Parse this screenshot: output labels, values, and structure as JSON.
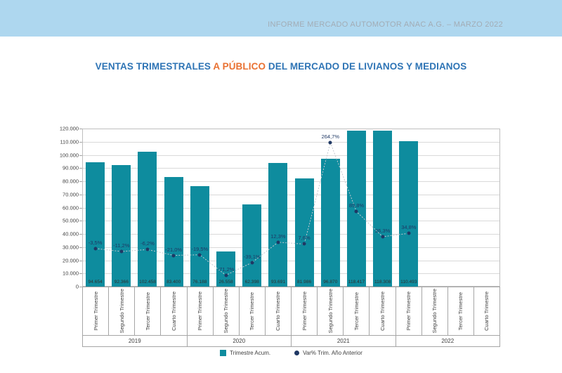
{
  "header": {
    "banner_text": "INFORME MERCADO AUTOMOTOR ANAC A.G. – MARZO 2022"
  },
  "title": {
    "part1": "VENTAS TRIMESTRALES",
    "part2": "A PÚBLICO",
    "part3": "DEL MERCADO DE LIVIANOS Y MEDIANOS"
  },
  "colors": {
    "bar": "#0E8C9E",
    "line_marker": "#1F3864",
    "banner": "#AED7EF",
    "title_blue": "#2E74B5",
    "title_orange": "#E97132",
    "gridline": "#D9D9D9"
  },
  "chart_data": {
    "type": "bar",
    "title": "VENTAS TRIMESTRALES A PÚBLICO DEL MERCADO DE LIVIANOS Y MEDIANOS",
    "years": [
      "2019",
      "2020",
      "2021",
      "2022"
    ],
    "quarter_labels": [
      "Primer Trimestre",
      "Segundo Trimestre",
      "Tercer Trimestre",
      "Cuarto Trimestre"
    ],
    "categories": [
      "Primer Trimestre",
      "Segundo Trimestre",
      "Tercer Trimestre",
      "Cuarto Trimestre",
      "Primer Trimestre",
      "Segundo Trimestre",
      "Tercer Trimestre",
      "Cuarto Trimestre",
      "Primer Trimestre",
      "Segundo Trimestre",
      "Tercer Trimestre",
      "Cuarto Trimestre",
      "Primer Trimestre",
      "Segundo Trimestre",
      "Tercer Trimestre",
      "Cuarto Trimestre"
    ],
    "series": [
      {
        "name": "Trimestre Acum.",
        "type": "bar",
        "values": [
          94654,
          92366,
          102458,
          83400,
          76188,
          26558,
          62398,
          93691,
          81986,
          96870,
          118417,
          118308,
          110493,
          null,
          null,
          null
        ],
        "value_labels": [
          "94.654",
          "92.366",
          "102.458",
          "83.400",
          "76.188",
          "26.558",
          "62.398",
          "93.691",
          "81.986",
          "96.870",
          "118.417",
          "118.308",
          "110.493",
          "",
          "",
          ""
        ]
      },
      {
        "name": "Var% Trim. Año Anterior",
        "type": "line",
        "values": [
          -3.5,
          -11.2,
          -6.2,
          -21.0,
          -19.5,
          -71.2,
          -39.1,
          12.3,
          7.6,
          264.7,
          89.8,
          26.3,
          34.8,
          null,
          null,
          null
        ],
        "value_labels": [
          "-3,5%",
          "-11,2%",
          "-6,2%",
          "-21,0%",
          "-19,5%",
          "-71,2%",
          "-39,1%",
          "12,3%",
          "7,6%",
          "264,7%",
          "89,8%",
          "26,3%",
          "34,8%",
          "",
          "",
          ""
        ]
      }
    ],
    "ylim": [
      0,
      120000
    ],
    "ytick_step": 10000,
    "ytick_labels": [
      "0",
      "10.000",
      "20.000",
      "30.000",
      "40.000",
      "50.000",
      "60.000",
      "70.000",
      "80.000",
      "90.000",
      "100.000",
      "110.000",
      "120.000"
    ],
    "y2lim": [
      -100,
      300
    ],
    "grid": true,
    "legend_position": "bottom"
  }
}
